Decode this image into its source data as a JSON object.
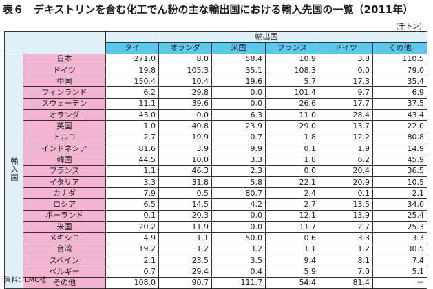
{
  "title": "表６　デキストリンを含む化工でん粉の主な輸出国における輸入先国の一覧（2011年）",
  "unit": "（千トン）",
  "exporter_header": "輸出国",
  "importer_header": "輸入国",
  "columns": [
    "タイ",
    "オランダ",
    "米国",
    "フランス",
    "ドイツ",
    "その他"
  ],
  "rows": [
    {
      "label": "日本",
      "values": [
        "271.0",
        "8.0",
        "58.4",
        "10.9",
        "3.8",
        "110.5"
      ]
    },
    {
      "label": "ドイツ",
      "values": [
        "19.8",
        "105.3",
        "35.1",
        "108.3",
        "0.0",
        "79.0"
      ]
    },
    {
      "label": "中国",
      "values": [
        "150.4",
        "10.4",
        "19.6",
        "5.7",
        "17.3",
        "35.4"
      ]
    },
    {
      "label": "フィンランド",
      "values": [
        "6.2",
        "29.8",
        "0.0",
        "101.4",
        "9.7",
        "6.9"
      ]
    },
    {
      "label": "スウェーデン",
      "values": [
        "11.1",
        "39.6",
        "0.0",
        "26.6",
        "17.7",
        "37.5"
      ]
    },
    {
      "label": "オランダ",
      "values": [
        "43.0",
        "0.0",
        "6.3",
        "11.0",
        "28.4",
        "43.4"
      ]
    },
    {
      "label": "英国",
      "values": [
        "1.0",
        "40.8",
        "23.9",
        "29.0",
        "13.7",
        "22.0"
      ]
    },
    {
      "label": "トルコ",
      "values": [
        "2.7",
        "19.9",
        "0.7",
        "1.8",
        "12.2",
        "80.8"
      ]
    },
    {
      "label": "インドネシア",
      "values": [
        "81.6",
        "3.9",
        "9.9",
        "0.1",
        "1.9",
        "14.9"
      ]
    },
    {
      "label": "韓国",
      "values": [
        "44.5",
        "10.0",
        "3.3",
        "1.8",
        "6.2",
        "45.9"
      ]
    },
    {
      "label": "フランス",
      "values": [
        "1.1",
        "46.3",
        "2.3",
        "0.0",
        "20.4",
        "36.5"
      ]
    },
    {
      "label": "イタリア",
      "values": [
        "3.3",
        "31.8",
        "5.8",
        "22.1",
        "20.9",
        "10.5"
      ]
    },
    {
      "label": "カナダ",
      "values": [
        "7.9",
        "0.5",
        "80.7",
        "2.4",
        "0.1",
        "2.1"
      ]
    },
    {
      "label": "ロシア",
      "values": [
        "6.5",
        "14.5",
        "4.2",
        "2.7",
        "13.5",
        "34.0"
      ]
    },
    {
      "label": "ポーランド",
      "values": [
        "0.1",
        "20.3",
        "0.0",
        "12.1",
        "13.9",
        "25.4"
      ]
    },
    {
      "label": "米国",
      "values": [
        "20.2",
        "11.9",
        "0.0",
        "11.7",
        "2.7",
        "25.3"
      ]
    },
    {
      "label": "メキシコ",
      "values": [
        "4.9",
        "1.1",
        "50.0",
        "0.6",
        "3.3",
        "3.3"
      ]
    },
    {
      "label": "台湾",
      "values": [
        "19.2",
        "1.2",
        "3.2",
        "1.1",
        "1.2",
        "30.5"
      ]
    },
    {
      "label": "スペイン",
      "values": [
        "2.1",
        "23.5",
        "3.5",
        "9.4",
        "8.1",
        "7.4"
      ]
    },
    {
      "label": "ベルギー",
      "values": [
        "0.7",
        "29.4",
        "0.4",
        "5.9",
        "7.0",
        "5.1"
      ]
    },
    {
      "label": "その他",
      "values": [
        "108.0",
        "90.7",
        "111.7",
        "54.4",
        "81.4",
        "－"
      ]
    }
  ],
  "source": "資料：LMC社"
}
